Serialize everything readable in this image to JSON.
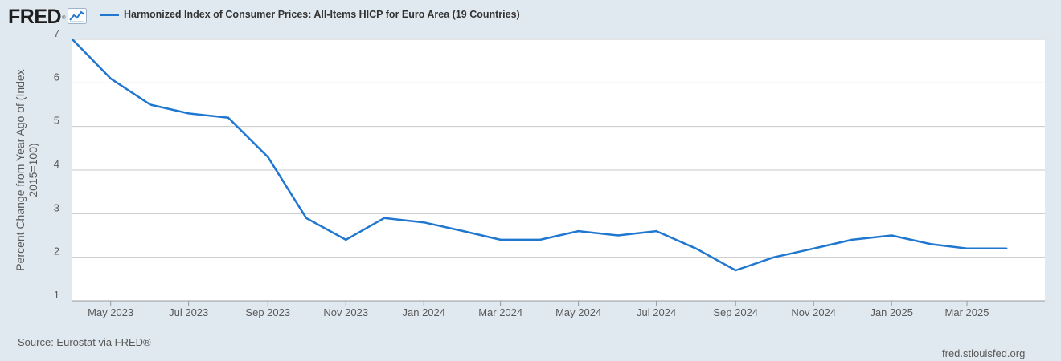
{
  "header": {
    "logo_text": "FRED",
    "logo_reg": "®"
  },
  "colors": {
    "series": "#1f77d0",
    "grid": "#c8c8c8",
    "plot_bg": "#ffffff",
    "page_bg": "#e1e9f0"
  },
  "icons": [
    "fred-logo-chart-icon"
  ],
  "footer": {
    "source": "Source: Eurostat via FRED®",
    "site": "fred.stlouisfed.org"
  },
  "chart_data": {
    "type": "line",
    "title": "",
    "xlabel": "",
    "ylabel_lines": [
      "Percent Change from Year Ago of (Index",
      "2015=100)"
    ],
    "ylim": [
      1,
      7
    ],
    "yticks": [
      1,
      2,
      3,
      4,
      5,
      6,
      7
    ],
    "xlim": [
      "2023-04-01",
      "2025-05-01"
    ],
    "xticks": [
      {
        "date": "2023-05-01",
        "label": "May 2023"
      },
      {
        "date": "2023-07-01",
        "label": "Jul 2023"
      },
      {
        "date": "2023-09-01",
        "label": "Sep 2023"
      },
      {
        "date": "2023-11-01",
        "label": "Nov 2023"
      },
      {
        "date": "2024-01-01",
        "label": "Jan 2024"
      },
      {
        "date": "2024-03-01",
        "label": "Mar 2024"
      },
      {
        "date": "2024-05-01",
        "label": "May 2024"
      },
      {
        "date": "2024-07-01",
        "label": "Jul 2024"
      },
      {
        "date": "2024-09-01",
        "label": "Sep 2024"
      },
      {
        "date": "2024-11-01",
        "label": "Nov 2024"
      },
      {
        "date": "2025-01-01",
        "label": "Jan 2025"
      },
      {
        "date": "2025-03-01",
        "label": "Mar 2025"
      }
    ],
    "grid": true,
    "legend_position": "top",
    "series": [
      {
        "name": "Harmonized Index of Consumer Prices: All-Items HICP for Euro Area (19 Countries)",
        "x": [
          "2023-04-01",
          "2023-05-01",
          "2023-06-01",
          "2023-07-01",
          "2023-08-01",
          "2023-09-01",
          "2023-10-01",
          "2023-11-01",
          "2023-12-01",
          "2024-01-01",
          "2024-02-01",
          "2024-03-01",
          "2024-04-01",
          "2024-05-01",
          "2024-06-01",
          "2024-07-01",
          "2024-08-01",
          "2024-09-01",
          "2024-10-01",
          "2024-11-01",
          "2024-12-01",
          "2025-01-01",
          "2025-02-01",
          "2025-03-01",
          "2025-04-01"
        ],
        "values": [
          7.0,
          6.1,
          5.5,
          5.3,
          5.2,
          4.3,
          2.9,
          2.4,
          2.9,
          2.8,
          2.6,
          2.4,
          2.4,
          2.6,
          2.5,
          2.6,
          2.2,
          1.7,
          2.0,
          2.2,
          2.4,
          2.5,
          2.3,
          2.2,
          2.2
        ]
      }
    ]
  }
}
